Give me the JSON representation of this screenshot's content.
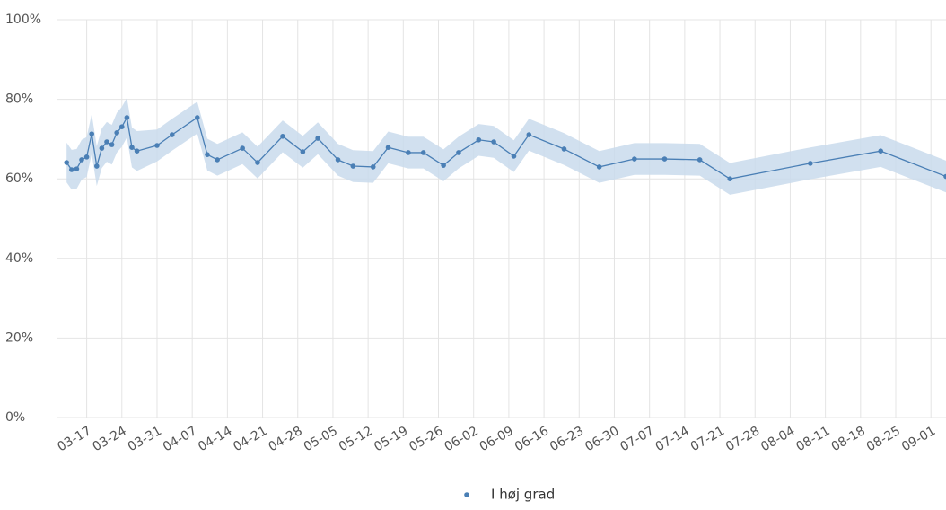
{
  "chart_data": {
    "type": "line",
    "x": [
      "03-13",
      "03-14",
      "03-15",
      "03-16",
      "03-17",
      "03-18",
      "03-19",
      "03-20",
      "03-21",
      "03-22",
      "03-23",
      "03-24",
      "03-25",
      "03-26",
      "03-27",
      "03-31",
      "04-03",
      "04-08",
      "04-10",
      "04-12",
      "04-17",
      "04-20",
      "04-25",
      "04-29",
      "05-02",
      "05-06",
      "05-09",
      "05-13",
      "05-16",
      "05-20",
      "05-23",
      "05-27",
      "05-30",
      "06-03",
      "06-06",
      "06-10",
      "06-13",
      "06-20",
      "06-27",
      "07-04",
      "07-10",
      "07-17",
      "07-23",
      "08-08",
      "08-22",
      "09-04"
    ],
    "series": [
      {
        "name": "I høj grad",
        "color": "#4a7fb5",
        "band_color": "#c9dbec",
        "values": [
          64.1,
          62.3,
          62.5,
          64.8,
          65.5,
          71.3,
          63.2,
          67.7,
          69.3,
          68.6,
          71.6,
          73.1,
          75.4,
          67.9,
          67.0,
          68.4,
          71.1,
          75.4,
          66.1,
          64.8,
          67.7,
          64.1,
          70.7,
          66.8,
          70.2,
          64.8,
          63.2,
          63.0,
          67.9,
          66.6,
          66.6,
          63.4,
          66.6,
          69.8,
          69.3,
          65.7,
          71.1,
          67.5,
          63.0,
          65.0,
          65.0,
          64.8,
          60.0,
          63.9,
          67.0,
          60.6
        ],
        "lower": [
          59.1,
          57.3,
          57.5,
          59.8,
          60.5,
          66.3,
          58.2,
          62.7,
          64.3,
          63.6,
          66.6,
          68.1,
          70.4,
          62.9,
          62.0,
          64.4,
          67.1,
          71.4,
          62.1,
          60.8,
          63.7,
          60.1,
          66.7,
          62.8,
          66.2,
          60.8,
          59.2,
          59.0,
          63.9,
          62.6,
          62.6,
          59.4,
          62.6,
          65.8,
          65.3,
          61.7,
          67.1,
          63.5,
          59.0,
          61.0,
          61.0,
          60.8,
          56.0,
          59.9,
          63.0,
          56.6
        ],
        "upper": [
          69.1,
          67.3,
          67.5,
          69.8,
          70.5,
          76.3,
          68.2,
          72.7,
          74.3,
          73.6,
          76.6,
          78.1,
          80.4,
          72.9,
          72.0,
          72.4,
          75.1,
          79.4,
          70.1,
          68.8,
          71.7,
          68.1,
          74.7,
          70.8,
          74.2,
          68.8,
          67.2,
          67.0,
          71.9,
          70.6,
          70.6,
          67.4,
          70.6,
          73.8,
          73.3,
          69.7,
          75.1,
          71.5,
          67.0,
          69.0,
          69.0,
          68.8,
          64.0,
          67.9,
          71.0,
          64.6
        ]
      }
    ],
    "xlim": [
      "03-11",
      "09-04"
    ],
    "xticks": [
      "03-17",
      "03-24",
      "03-31",
      "04-07",
      "04-14",
      "04-21",
      "04-28",
      "05-05",
      "05-12",
      "05-19",
      "05-26",
      "06-02",
      "06-09",
      "06-16",
      "06-23",
      "06-30",
      "07-07",
      "07-14",
      "07-21",
      "07-28",
      "08-04",
      "08-11",
      "08-18",
      "08-25",
      "09-01"
    ],
    "ylim": [
      0,
      100
    ],
    "yticks": [
      {
        "value": 0,
        "label": "0%"
      },
      {
        "value": 20,
        "label": "20%"
      },
      {
        "value": 40,
        "label": "40%"
      },
      {
        "value": 60,
        "label": "60%"
      },
      {
        "value": 80,
        "label": "80%"
      },
      {
        "value": 100,
        "label": "100%"
      }
    ],
    "grid": true,
    "legend": "bottom"
  }
}
